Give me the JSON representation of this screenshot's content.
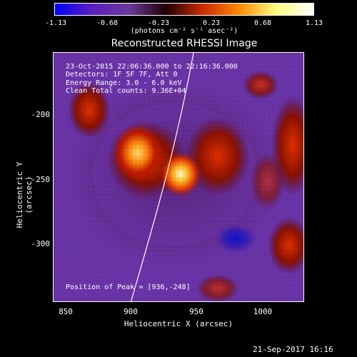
{
  "colorbar": {
    "ticks": [
      "-1.13",
      "-0.68",
      "-0.23",
      "0.23",
      "0.68",
      "1.13"
    ],
    "unit": "(photons cm⁻² s⁻¹ asec⁻²)",
    "colors": [
      "#0000ff",
      "#5a1fbf",
      "#6a3a9a",
      "#200000",
      "#cc2a00",
      "#ff8a00",
      "#ffff80",
      "#ffffff"
    ]
  },
  "title": "Reconstructed RHESSI Image",
  "info": {
    "line1": "23-Oct-2015 22:06:36.000 to 22:16:36.000",
    "line2": "Detectors: 1F 5F 7F, Att 0",
    "line3": "Energy Range: 3.0 - 6.0 keV",
    "line4": "Clean     Total counts: 9.36E+04"
  },
  "peak": "Position of Peak = [936,-248]",
  "axes": {
    "xlabel": "Heliocentric X (arcsec)",
    "ylabel": "Heliocentric Y (arcsec)",
    "xticks": [
      "850",
      "900",
      "950",
      "1000"
    ],
    "yticks": [
      "-200",
      "-250",
      "-300"
    ]
  },
  "timestamp": "21-Sep-2017 16:16"
}
